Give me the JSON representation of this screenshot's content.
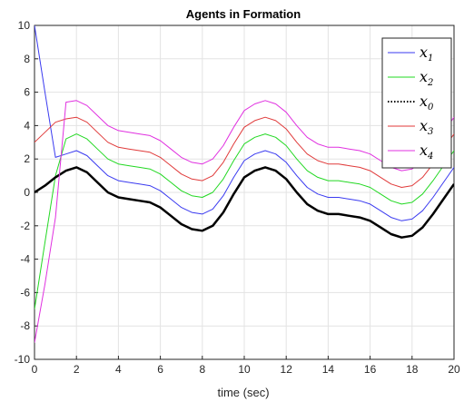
{
  "chart_data": {
    "type": "line",
    "title": "Agents in Formation",
    "xlabel": "time (sec)",
    "ylabel": "",
    "xlim": [
      0,
      20
    ],
    "ylim": [
      -10,
      10
    ],
    "xticks": [
      0,
      2,
      4,
      6,
      8,
      10,
      12,
      14,
      16,
      18,
      20
    ],
    "yticks": [
      -10,
      -8,
      -6,
      -4,
      -2,
      0,
      2,
      4,
      6,
      8,
      10
    ],
    "grid": true,
    "legend_position": "top-right",
    "x": [
      0,
      0.5,
      1,
      1.5,
      2,
      2.5,
      3,
      3.5,
      4,
      4.5,
      5,
      5.5,
      6,
      6.5,
      7,
      7.5,
      8,
      8.5,
      9,
      9.5,
      10,
      10.5,
      11,
      11.5,
      12,
      12.5,
      13,
      13.5,
      14,
      14.5,
      15,
      15.5,
      16,
      16.5,
      17,
      17.5,
      18,
      18.5,
      19,
      19.5,
      20
    ],
    "series": [
      {
        "name": "x",
        "subscript": "1",
        "color": "#3a3af0",
        "dashed": false,
        "width": 1,
        "values": [
          10,
          6,
          2.1,
          2.3,
          2.5,
          2.2,
          1.6,
          1.0,
          0.7,
          0.6,
          0.5,
          0.4,
          0.1,
          -0.4,
          -0.9,
          -1.2,
          -1.3,
          -1.0,
          -0.2,
          0.9,
          1.9,
          2.3,
          2.5,
          2.3,
          1.8,
          1.0,
          0.3,
          -0.1,
          -0.3,
          -0.3,
          -0.4,
          -0.5,
          -0.7,
          -1.1,
          -1.5,
          -1.7,
          -1.6,
          -1.1,
          -0.3,
          0.6,
          1.5
        ]
      },
      {
        "name": "x",
        "subscript": "2",
        "color": "#22d822",
        "dashed": false,
        "width": 1,
        "values": [
          -7,
          -3.0,
          1.0,
          3.2,
          3.5,
          3.2,
          2.6,
          2.0,
          1.7,
          1.6,
          1.5,
          1.4,
          1.1,
          0.6,
          0.1,
          -0.2,
          -0.3,
          0.0,
          0.8,
          1.9,
          2.9,
          3.3,
          3.5,
          3.3,
          2.8,
          2.0,
          1.3,
          0.9,
          0.7,
          0.7,
          0.6,
          0.5,
          0.3,
          -0.1,
          -0.5,
          -0.7,
          -0.6,
          -0.1,
          0.7,
          1.6,
          2.5
        ]
      },
      {
        "name": "x",
        "subscript": "0",
        "color": "#000000",
        "dashed": true,
        "width": 2.5,
        "values": [
          0,
          0.4,
          0.9,
          1.3,
          1.5,
          1.2,
          0.6,
          0.0,
          -0.3,
          -0.4,
          -0.5,
          -0.6,
          -0.9,
          -1.4,
          -1.9,
          -2.2,
          -2.3,
          -2.0,
          -1.2,
          -0.1,
          0.9,
          1.3,
          1.5,
          1.3,
          0.8,
          0.0,
          -0.7,
          -1.1,
          -1.3,
          -1.3,
          -1.4,
          -1.5,
          -1.7,
          -2.1,
          -2.5,
          -2.7,
          -2.6,
          -2.1,
          -1.3,
          -0.4,
          0.5
        ]
      },
      {
        "name": "x",
        "subscript": "3",
        "color": "#e03a3a",
        "dashed": false,
        "width": 1,
        "values": [
          3,
          3.6,
          4.2,
          4.4,
          4.5,
          4.2,
          3.6,
          3.0,
          2.7,
          2.6,
          2.5,
          2.4,
          2.1,
          1.6,
          1.1,
          0.8,
          0.7,
          1.0,
          1.8,
          2.9,
          3.9,
          4.3,
          4.5,
          4.3,
          3.8,
          3.0,
          2.3,
          1.9,
          1.7,
          1.7,
          1.6,
          1.5,
          1.3,
          0.9,
          0.5,
          0.3,
          0.4,
          0.9,
          1.7,
          2.6,
          3.5
        ]
      },
      {
        "name": "x",
        "subscript": "4",
        "color": "#e030e0",
        "dashed": false,
        "width": 1,
        "values": [
          -9,
          -5.5,
          -1.5,
          5.4,
          5.5,
          5.2,
          4.6,
          4.0,
          3.7,
          3.6,
          3.5,
          3.4,
          3.1,
          2.6,
          2.1,
          1.8,
          1.7,
          2.0,
          2.8,
          3.9,
          4.9,
          5.3,
          5.5,
          5.3,
          4.8,
          4.0,
          3.3,
          2.9,
          2.7,
          2.7,
          2.6,
          2.5,
          2.3,
          1.9,
          1.5,
          1.3,
          1.4,
          1.9,
          2.7,
          3.6,
          4.5
        ]
      }
    ]
  }
}
